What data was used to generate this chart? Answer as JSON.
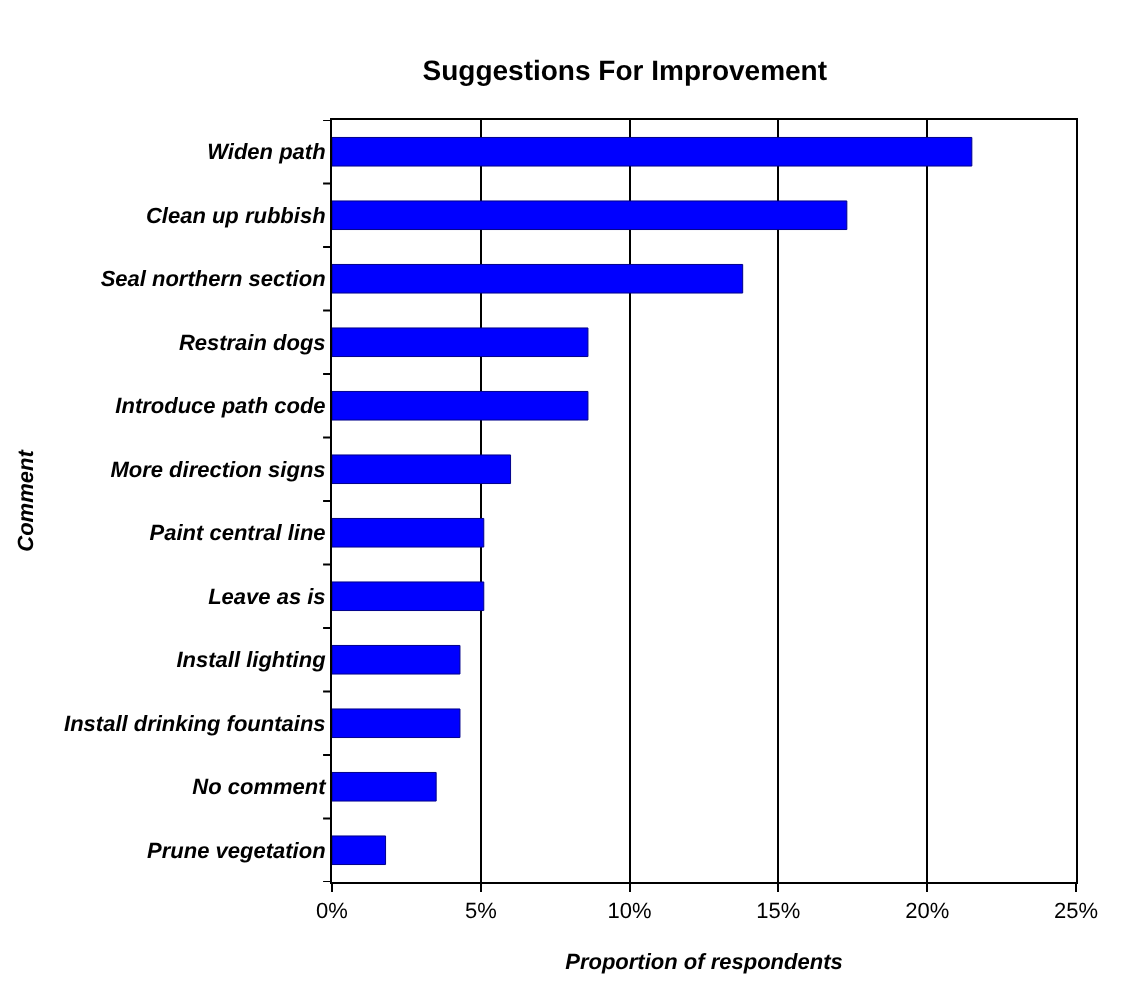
{
  "chart_data": {
    "type": "bar",
    "orientation": "horizontal",
    "title": "Suggestions For Improvement",
    "xlabel": "Proportion of respondents",
    "ylabel": "Comment",
    "categories": [
      "Widen path",
      "Clean up rubbish",
      "Seal northern section",
      "Restrain dogs",
      "Introduce path code",
      "More direction signs",
      "Paint central line",
      "Leave as is",
      "Install lighting",
      "Install drinking fountains",
      "No comment",
      "Prune vegetation"
    ],
    "values": [
      21.5,
      17.3,
      13.8,
      8.6,
      8.6,
      6.0,
      5.1,
      5.1,
      4.3,
      4.3,
      3.5,
      1.8
    ],
    "color": "#0000ff",
    "xlim": [
      0,
      25
    ],
    "xticks": [
      {
        "value": 0,
        "label": "0%"
      },
      {
        "value": 5,
        "label": "5%"
      },
      {
        "value": 10,
        "label": "10%"
      },
      {
        "value": 15,
        "label": "15%"
      },
      {
        "value": 20,
        "label": "20%"
      },
      {
        "value": 25,
        "label": "25%"
      }
    ],
    "grid": "x",
    "legend": false
  }
}
